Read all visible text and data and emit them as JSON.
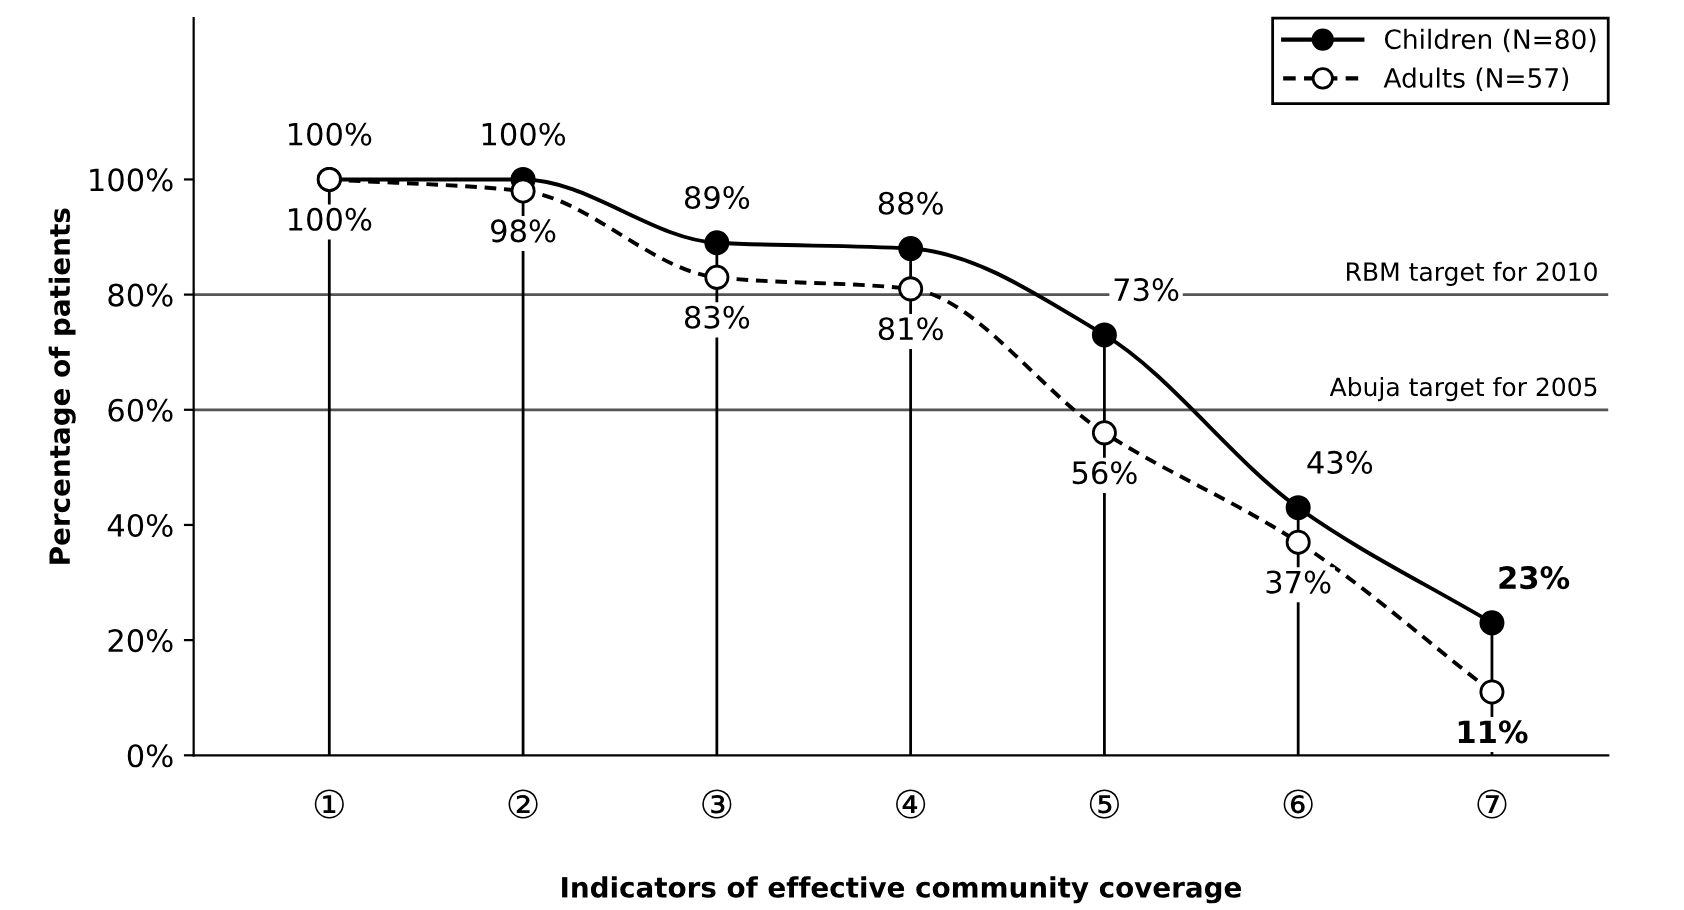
{
  "chart_data": {
    "type": "line",
    "xlabel": "Indicators of effective community coverage",
    "ylabel": "Percentage of patients",
    "categories": [
      "①",
      "②",
      "③",
      "④",
      "⑤",
      "⑥",
      "⑦"
    ],
    "series": [
      {
        "name": "Children (N=80)",
        "color": "#000000",
        "line_style": "solid",
        "values": [
          100,
          100,
          89,
          88,
          73,
          43,
          23
        ],
        "value_labels": [
          "100%",
          "100%",
          "89%",
          "88%",
          "73%",
          "43%",
          "23%"
        ]
      },
      {
        "name": "Adults (N=57)",
        "color": "#000000",
        "line_style": "dashed",
        "values": [
          100,
          98,
          83,
          81,
          56,
          37,
          11
        ],
        "value_labels": [
          "100%",
          "98%",
          "83%",
          "81%",
          "56%",
          "37%",
          "11%"
        ]
      }
    ],
    "ylim": [
      0,
      128
    ],
    "yticks": [
      {
        "value": 0,
        "label": "0%"
      },
      {
        "value": 20,
        "label": "20%"
      },
      {
        "value": 40,
        "label": "40%"
      },
      {
        "value": 60,
        "label": "60%"
      },
      {
        "value": 80,
        "label": "80%"
      },
      {
        "value": 100,
        "label": "100%"
      }
    ],
    "ref_lines": [
      {
        "axis": "y",
        "value": 80,
        "label": "RBM target for 2010",
        "color": "#555555"
      },
      {
        "axis": "y",
        "value": 60,
        "label": "Abuja target for 2005",
        "color": "#555555"
      }
    ],
    "marker": "circle",
    "legend": "top right",
    "grid": "x"
  }
}
